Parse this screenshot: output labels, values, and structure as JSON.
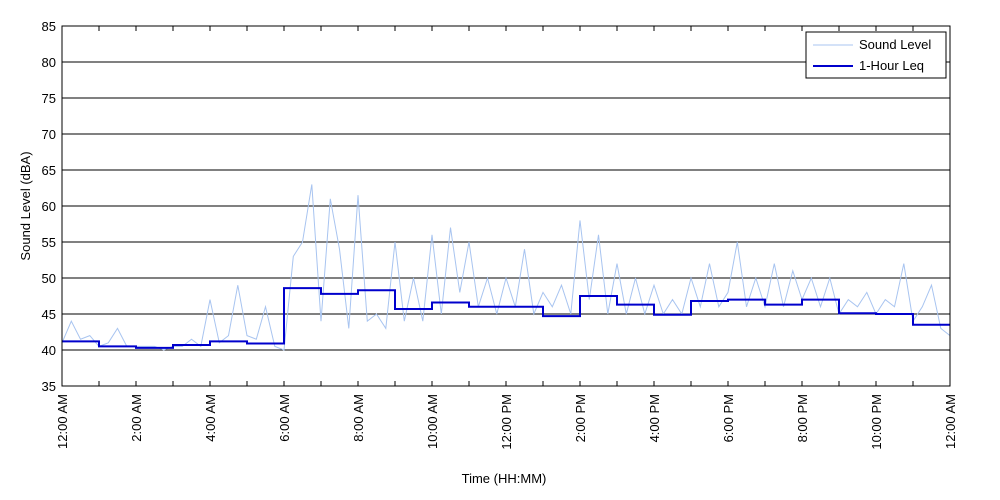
{
  "chart_data": {
    "type": "line",
    "title": "",
    "xlabel": "Time (HH:MM)",
    "ylabel": "Sound Level (dBA)",
    "xlim": [
      0,
      24
    ],
    "ylim": [
      35,
      85
    ],
    "y_ticks": [
      35,
      40,
      45,
      50,
      55,
      60,
      65,
      70,
      75,
      80,
      85
    ],
    "x_ticks": [
      {
        "hour": 0,
        "label": "12:00 AM"
      },
      {
        "hour": 2,
        "label": "2:00 AM"
      },
      {
        "hour": 4,
        "label": "4:00 AM"
      },
      {
        "hour": 6,
        "label": "6:00 AM"
      },
      {
        "hour": 8,
        "label": "8:00 AM"
      },
      {
        "hour": 10,
        "label": "10:00 AM"
      },
      {
        "hour": 12,
        "label": "12:00 PM"
      },
      {
        "hour": 14,
        "label": "2:00 PM"
      },
      {
        "hour": 16,
        "label": "4:00 PM"
      },
      {
        "hour": 18,
        "label": "6:00 PM"
      },
      {
        "hour": 20,
        "label": "8:00 PM"
      },
      {
        "hour": 22,
        "label": "10:00 PM"
      },
      {
        "hour": 24,
        "label": "12:00 AM"
      }
    ],
    "grid": "horizontal",
    "legend": "top-right",
    "series": [
      {
        "name": "Sound Level",
        "color": "#a8c4f0",
        "style": "thin-line",
        "hours": [
          0.0,
          0.25,
          0.5,
          0.75,
          1.0,
          1.25,
          1.5,
          1.75,
          2.0,
          2.25,
          2.5,
          2.75,
          3.0,
          3.25,
          3.5,
          3.75,
          4.0,
          4.25,
          4.5,
          4.75,
          5.0,
          5.25,
          5.5,
          5.75,
          6.0,
          6.25,
          6.5,
          6.75,
          7.0,
          7.25,
          7.5,
          7.75,
          8.0,
          8.25,
          8.5,
          8.75,
          9.0,
          9.25,
          9.5,
          9.75,
          10.0,
          10.25,
          10.5,
          10.75,
          11.0,
          11.25,
          11.5,
          11.75,
          12.0,
          12.25,
          12.5,
          12.75,
          13.0,
          13.25,
          13.5,
          13.75,
          14.0,
          14.25,
          14.5,
          14.75,
          15.0,
          15.25,
          15.5,
          15.75,
          16.0,
          16.25,
          16.5,
          16.75,
          17.0,
          17.25,
          17.5,
          17.75,
          18.0,
          18.25,
          18.5,
          18.75,
          19.0,
          19.25,
          19.5,
          19.75,
          20.0,
          20.25,
          20.5,
          20.75,
          21.0,
          21.25,
          21.5,
          21.75,
          22.0,
          22.25,
          22.5,
          22.75,
          23.0,
          23.25,
          23.5,
          23.75,
          24.0
        ],
        "values": [
          41,
          44,
          41.5,
          42,
          40.5,
          41,
          43,
          40.5,
          40.5,
          40.5,
          40.5,
          40,
          40.5,
          40.5,
          41.5,
          40.5,
          47,
          41,
          42,
          49,
          42,
          41.5,
          46,
          40.5,
          40,
          53,
          55,
          63,
          44,
          61,
          54,
          43,
          61.5,
          44,
          45,
          43,
          55,
          44,
          50,
          44,
          56,
          45,
          57,
          48,
          55,
          46,
          50,
          45,
          50,
          46,
          54,
          45,
          48,
          46,
          49,
          45,
          58,
          47,
          56,
          45,
          52,
          45,
          50,
          45,
          49,
          45,
          47,
          45,
          50,
          46,
          52,
          46,
          48,
          55,
          46,
          50,
          46,
          52,
          46,
          51,
          47,
          50,
          46,
          50,
          45,
          47,
          46,
          48,
          45,
          47,
          46,
          52,
          44,
          46,
          49,
          43,
          42
        ]
      },
      {
        "name": "1-Hour Leq",
        "color": "#0000cc",
        "style": "step",
        "hours": [
          0,
          1,
          2,
          3,
          4,
          5,
          6,
          7,
          8,
          9,
          10,
          11,
          12,
          13,
          14,
          15,
          16,
          17,
          18,
          19,
          20,
          21,
          22,
          23
        ],
        "values": [
          41.2,
          40.5,
          40.3,
          40.7,
          41.2,
          40.9,
          48.6,
          47.8,
          48.3,
          45.7,
          46.6,
          46.0,
          46.0,
          44.7,
          47.5,
          46.3,
          44.9,
          46.8,
          47.0,
          46.3,
          47.0,
          45.1,
          45.0,
          43.5
        ]
      }
    ]
  }
}
